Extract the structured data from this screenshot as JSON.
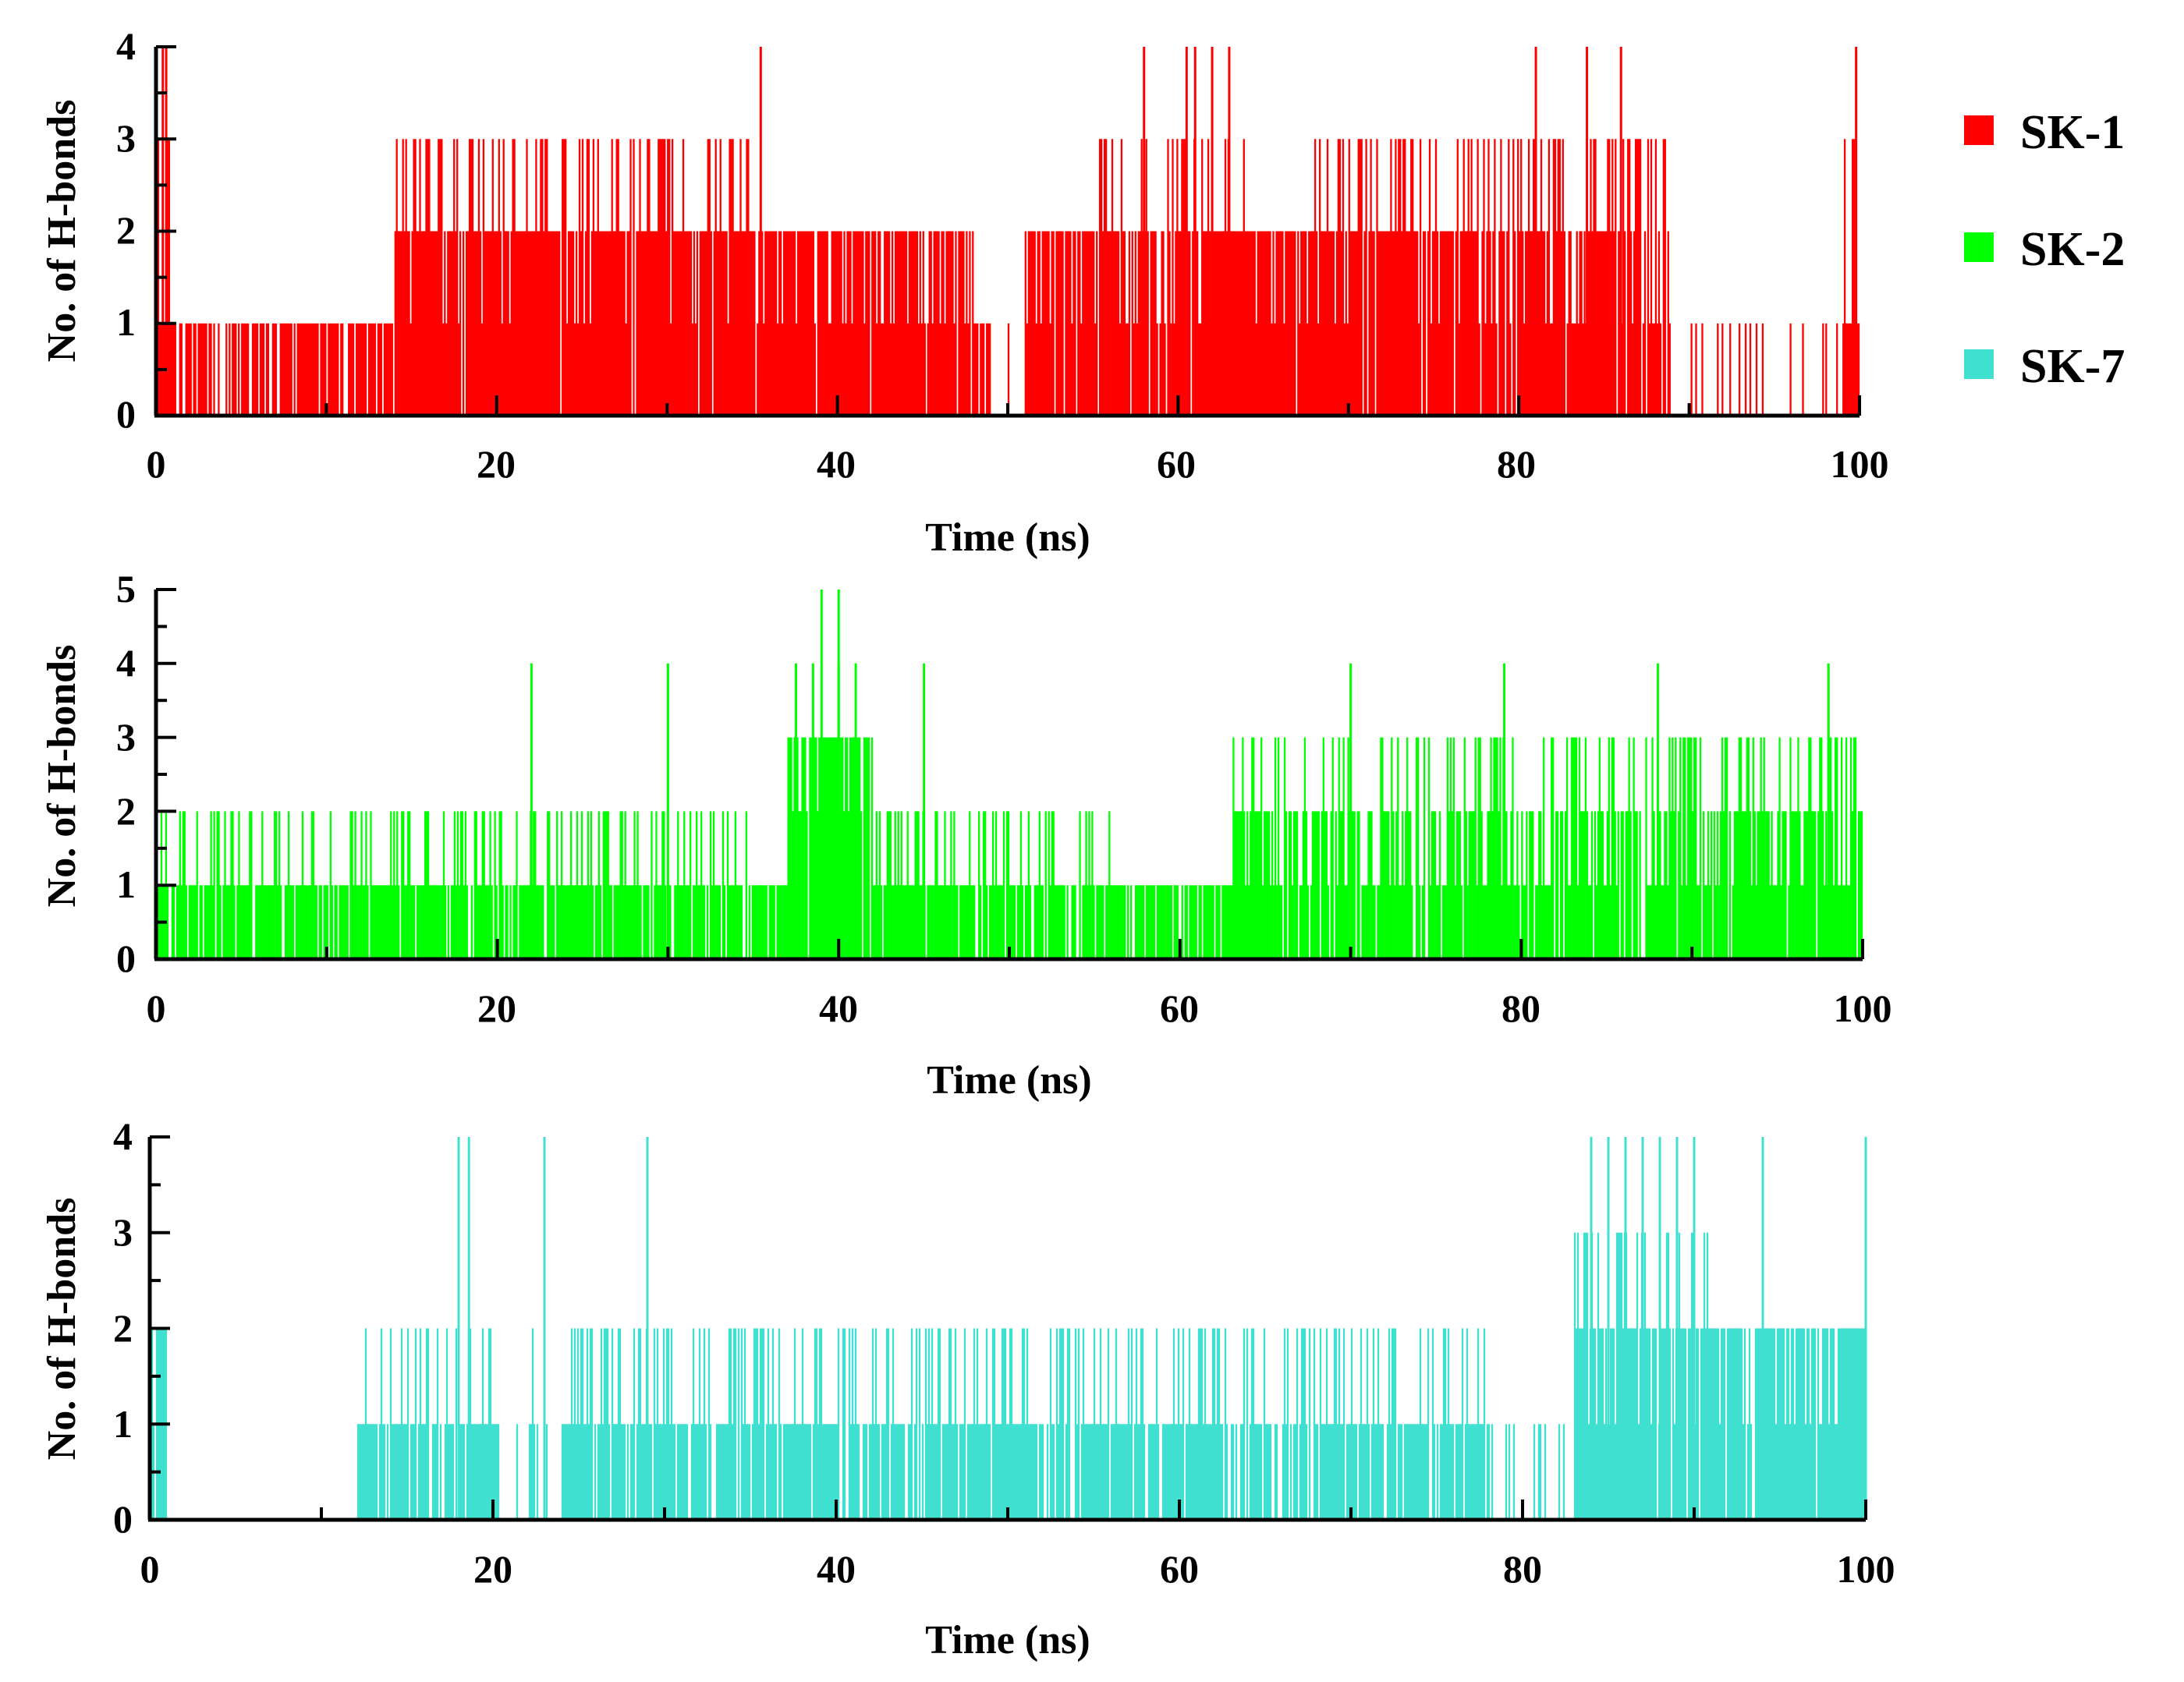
{
  "legend": {
    "items": [
      {
        "label": "SK-1",
        "color": "#ff0000"
      },
      {
        "label": "SK-2",
        "color": "#00ff00"
      },
      {
        "label": "SK-7",
        "color": "#40e0d0"
      }
    ]
  },
  "chart_data": [
    {
      "type": "bar",
      "series_name": "SK-1",
      "color": "#ff0000",
      "xlabel": "Time (ns)",
      "ylabel": "No. of H-bonds",
      "xlim": [
        0,
        100
      ],
      "ylim": [
        0,
        4
      ],
      "xticks": [
        "0",
        "20",
        "40",
        "60",
        "80",
        "100"
      ],
      "yticks": [
        "0",
        "1",
        "2",
        "3",
        "4"
      ],
      "baseline_segments": [
        [
          0,
          14,
          1
        ],
        [
          14,
          48,
          2
        ],
        [
          48,
          51,
          1
        ],
        [
          51,
          87,
          2
        ],
        [
          87,
          100,
          1
        ]
      ],
      "high_values": [
        [
          3,
          0,
          1
        ],
        [
          3,
          14,
          36
        ],
        [
          3,
          55,
          64
        ],
        [
          3,
          68,
          89
        ],
        [
          3,
          98.5,
          100
        ]
      ],
      "spikes_to_4": [
        0.4,
        0.6,
        35.5,
        58,
        60.5,
        61,
        62,
        63,
        81,
        84,
        86,
        99.8
      ],
      "gaps": [
        [
          49,
          51
        ],
        [
          89,
          99
        ]
      ],
      "seed": 17
    },
    {
      "type": "bar",
      "series_name": "SK-2",
      "color": "#00ff00",
      "xlabel": "Time (ns)",
      "ylabel": "No. of H-bonds",
      "xlim": [
        0,
        100
      ],
      "ylim": [
        0,
        5
      ],
      "xticks": [
        "0",
        "20",
        "40",
        "60",
        "80",
        "100"
      ],
      "yticks": [
        "0",
        "1",
        "2",
        "3",
        "4",
        "5"
      ],
      "baseline_segments": [
        [
          0,
          34,
          1
        ],
        [
          34,
          37,
          1
        ],
        [
          37,
          42,
          3
        ],
        [
          42,
          55,
          1
        ],
        [
          55,
          63,
          1
        ],
        [
          63,
          100,
          1.5
        ]
      ],
      "high_values": [
        [
          2,
          0,
          35
        ],
        [
          2,
          42,
          56
        ],
        [
          2,
          63,
          100
        ],
        [
          3,
          63,
          100
        ]
      ],
      "spikes_to_4": [
        22,
        30,
        37.5,
        38.5,
        40,
        41,
        45,
        70,
        79,
        88,
        98
      ],
      "spikes_to_5": [
        39,
        40
      ],
      "gaps": [],
      "seed": 29
    },
    {
      "type": "bar",
      "series_name": "SK-7",
      "color": "#40e0d0",
      "xlabel": "Time (ns)",
      "ylabel": "No. of H-bonds",
      "xlim": [
        0,
        100
      ],
      "ylim": [
        0,
        4
      ],
      "xticks": [
        "0",
        "20",
        "40",
        "60",
        "80",
        "100"
      ],
      "yticks": [
        "0",
        "1",
        "2",
        "3",
        "4"
      ],
      "baseline_segments": [
        [
          0,
          1,
          2
        ],
        [
          1,
          12,
          0
        ],
        [
          12,
          22,
          1
        ],
        [
          22,
          24,
          1
        ],
        [
          24,
          34,
          1
        ],
        [
          34,
          78,
          1
        ],
        [
          78,
          83,
          0.5
        ],
        [
          83,
          100,
          2
        ]
      ],
      "high_values": [
        [
          2,
          12,
          20
        ],
        [
          2,
          22,
          78
        ],
        [
          3,
          83,
          91
        ]
      ],
      "spikes_to_4": [
        18,
        18.6,
        23,
        29,
        84,
        85,
        86,
        87,
        88,
        89,
        90,
        94,
        100
      ],
      "gaps": [
        [
          20.5,
          22
        ],
        [
          22.5,
          24
        ],
        [
          78,
          83
        ]
      ],
      "seed": 43
    }
  ]
}
